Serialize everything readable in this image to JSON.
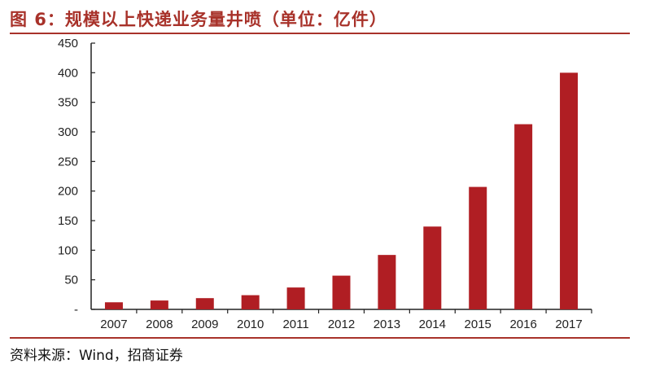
{
  "title": "图 6：规模以上快递业务量井喷（单位：亿件）",
  "source": "资料来源：Wind，招商证券",
  "colors": {
    "bar": "#b01e23",
    "title": "#a8322a",
    "axis": "#222222"
  },
  "chart_data": {
    "type": "bar",
    "title": "图 6：规模以上快递业务量井喷（单位：亿件）",
    "xlabel": "",
    "ylabel": "",
    "categories": [
      "2007",
      "2008",
      "2009",
      "2010",
      "2011",
      "2012",
      "2013",
      "2014",
      "2015",
      "2016",
      "2017"
    ],
    "values": [
      12,
      15,
      19,
      24,
      37,
      57,
      92,
      140,
      207,
      313,
      400
    ],
    "ylim": [
      0,
      450
    ],
    "yticks": [
      0,
      50,
      100,
      150,
      200,
      250,
      300,
      350,
      400,
      450
    ],
    "ytick_labels": [
      "-",
      "50",
      "100",
      "150",
      "200",
      "250",
      "300",
      "350",
      "400",
      "450"
    ],
    "grid": false,
    "legend": "none"
  }
}
